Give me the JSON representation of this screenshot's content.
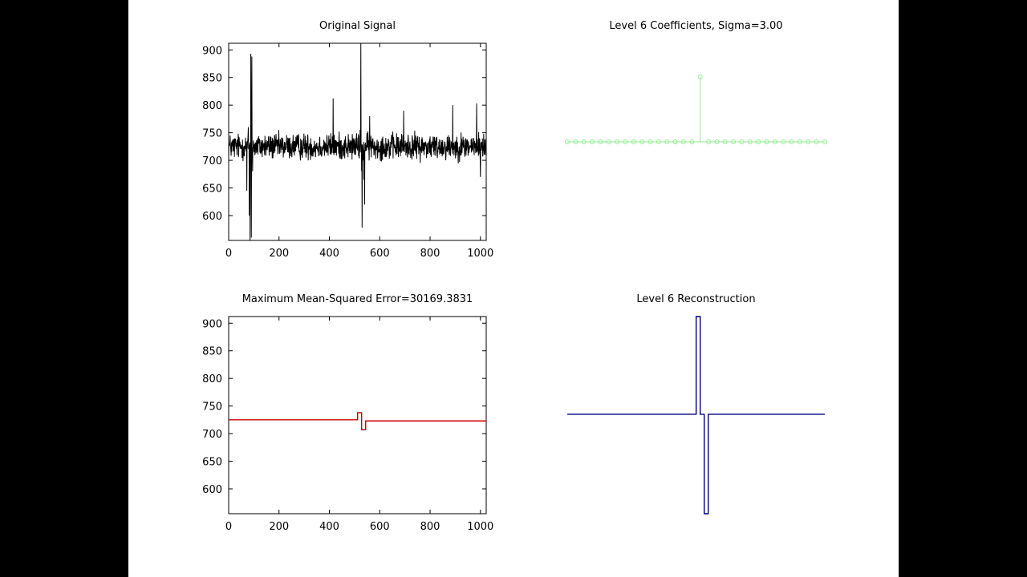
{
  "colors": {
    "background": "#000000",
    "figure": "#ffffff",
    "signal": "#000000",
    "coefficients": "#90ee90",
    "error": "#cc0000",
    "reconstruction": "#000080"
  },
  "chart_data": [
    {
      "id": "original",
      "type": "line",
      "title": "Original Signal",
      "xlim": [
        0,
        1023
      ],
      "ylim": [
        555,
        912
      ],
      "xticks": [
        "0",
        "200",
        "400",
        "600",
        "800",
        "1000"
      ],
      "yticks": [
        "600",
        "650",
        "700",
        "750",
        "800",
        "850",
        "900"
      ],
      "series": [
        {
          "color": "#000000",
          "baseline": 725,
          "noise_amplitude": 25,
          "spikes": [
            {
              "x": 72,
              "y": 645
            },
            {
              "x": 78,
              "y": 760
            },
            {
              "x": 82,
              "y": 600
            },
            {
              "x": 85,
              "y": 555
            },
            {
              "x": 88,
              "y": 893
            },
            {
              "x": 90,
              "y": 560
            },
            {
              "x": 92,
              "y": 888
            },
            {
              "x": 95,
              "y": 680
            },
            {
              "x": 415,
              "y": 812
            },
            {
              "x": 522,
              "y": 755
            },
            {
              "x": 525,
              "y": 912
            },
            {
              "x": 528,
              "y": 680
            },
            {
              "x": 530,
              "y": 578
            },
            {
              "x": 533,
              "y": 700
            },
            {
              "x": 537,
              "y": 665
            },
            {
              "x": 540,
              "y": 620
            },
            {
              "x": 560,
              "y": 780
            },
            {
              "x": 695,
              "y": 790
            },
            {
              "x": 890,
              "y": 800
            },
            {
              "x": 985,
              "y": 803
            },
            {
              "x": 1000,
              "y": 670
            }
          ]
        }
      ]
    },
    {
      "id": "coefficients",
      "type": "stem",
      "title": "Level 6 Coefficients, Sigma=3.00",
      "axes_visible": false,
      "ylim": [
        -1,
        1.1
      ],
      "series": [
        {
          "color": "#90ee90",
          "values": [
            0,
            0,
            0,
            0,
            0,
            0,
            0,
            0,
            0,
            0,
            0,
            0,
            0,
            0,
            0,
            0,
            1,
            0,
            0,
            0,
            0,
            0,
            0,
            0,
            0,
            0,
            0,
            0,
            0,
            0,
            0,
            0
          ]
        }
      ]
    },
    {
      "id": "error",
      "type": "line",
      "title": "Maximum Mean-Squared Error=30169.3831",
      "xlim": [
        0,
        1023
      ],
      "ylim": [
        555,
        912
      ],
      "xticks": [
        "0",
        "200",
        "400",
        "600",
        "800",
        "1000"
      ],
      "yticks": [
        "600",
        "650",
        "700",
        "750",
        "800",
        "850",
        "900"
      ],
      "series": [
        {
          "color": "#cc0000",
          "x": [
            0,
            512,
            512,
            528,
            528,
            544,
            544,
            1023
          ],
          "y": [
            725,
            725,
            738,
            738,
            707,
            707,
            723,
            723
          ]
        }
      ]
    },
    {
      "id": "reconstruction",
      "type": "line",
      "title": "Level 6 Reconstruction",
      "axes_visible": false,
      "xlim": [
        0,
        1023
      ],
      "ylim": [
        555,
        912
      ],
      "series": [
        {
          "color": "#000080",
          "x": [
            0,
            512,
            512,
            528,
            528,
            544,
            544,
            560,
            560,
            1023
          ],
          "y": [
            735,
            735,
            912,
            912,
            735,
            735,
            555,
            555,
            735,
            735
          ]
        }
      ]
    }
  ]
}
